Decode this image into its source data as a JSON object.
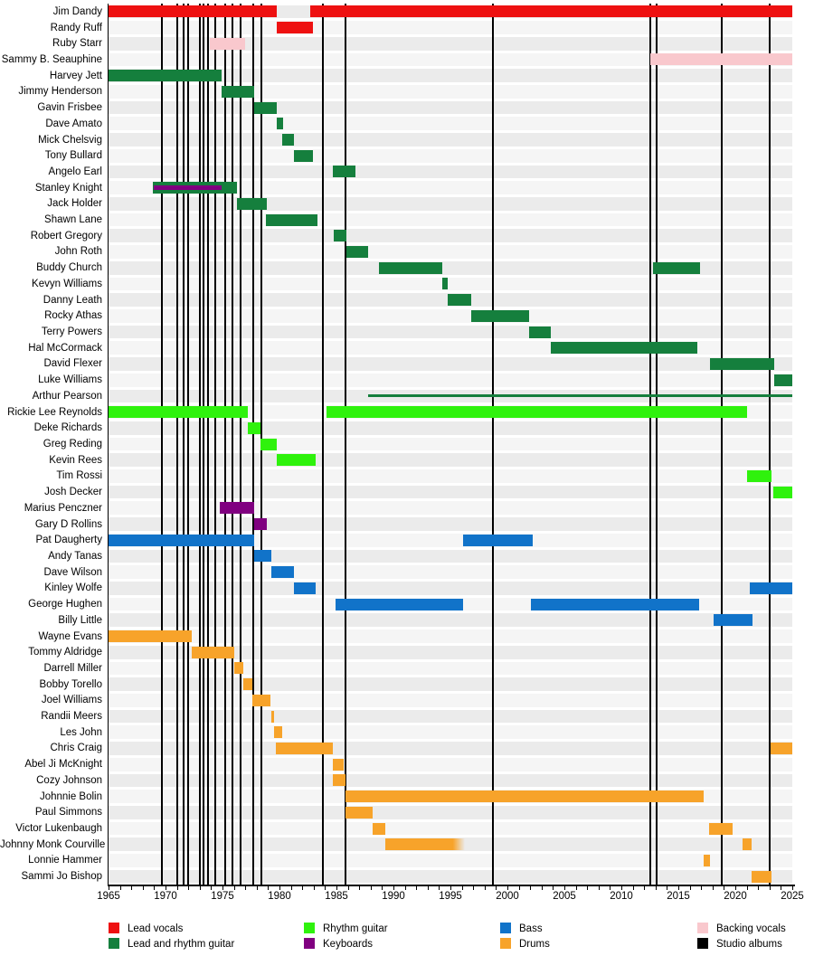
{
  "chart_data": {
    "type": "timeline",
    "description": "Band members timeline with roles and studio album markers",
    "x_axis": {
      "start": 1965,
      "end": 2025,
      "label_interval": 5,
      "tick_labels": [
        "1965",
        "1970",
        "1975",
        "1980",
        "1985",
        "1990",
        "1995",
        "2000",
        "2005",
        "2010",
        "2015",
        "2020",
        "2025"
      ]
    },
    "legend": [
      {
        "label": "Lead vocals",
        "role": "lead_vocals",
        "color": "#ee1111"
      },
      {
        "label": "Lead and rhythm guitar",
        "role": "lead_rhythm_guitar",
        "color": "#157f3d"
      },
      {
        "label": "Rhythm guitar",
        "role": "rhythm_guitar",
        "color": "#2ff20d"
      },
      {
        "label": "Keyboards",
        "role": "keyboards",
        "color": "#800080"
      },
      {
        "label": "Bass",
        "role": "bass",
        "color": "#1173c9"
      },
      {
        "label": "Drums",
        "role": "drums",
        "color": "#f7a32a"
      },
      {
        "label": "Backing vocals",
        "role": "backing_vocals",
        "color": "#f9c8cd"
      },
      {
        "label": "Studio albums",
        "role": "studio_albums",
        "color": "#000000"
      }
    ],
    "album_marker_years": [
      1969.7,
      1971.0,
      1971.6,
      1972.0,
      1973.0,
      1973.3,
      1973.7,
      1974.4,
      1975.2,
      1975.9,
      1976.6,
      1977.7,
      1978.4,
      1983.8,
      1985.8,
      1998.7,
      2012.5,
      2013.1,
      2018.8,
      2023.0
    ],
    "members": [
      {
        "name": "Jim Dandy",
        "bars": [
          {
            "role": "lead_vocals",
            "start": 1965,
            "end": 1979.8
          },
          {
            "role": "lead_vocals",
            "start": 1982.7,
            "end": "present"
          }
        ]
      },
      {
        "name": "Randy Ruff",
        "bars": [
          {
            "role": "lead_vocals",
            "start": 1979.8,
            "end": 1982.9
          }
        ]
      },
      {
        "name": "Ruby Starr",
        "bars": [
          {
            "role": "backing_vocals",
            "start": 1973.9,
            "end": 1977.0
          }
        ]
      },
      {
        "name": "Sammy B. Seauphine",
        "bars": [
          {
            "role": "backing_vocals",
            "start": 2012.5,
            "end": "present"
          }
        ]
      },
      {
        "name": "Harvey Jett",
        "bars": [
          {
            "role": "lead_rhythm_guitar",
            "start": 1965,
            "end": 1974.9
          }
        ]
      },
      {
        "name": "Jimmy Henderson",
        "bars": [
          {
            "role": "lead_rhythm_guitar",
            "start": 1974.9,
            "end": 1977.8
          }
        ]
      },
      {
        "name": "Gavin Frisbee",
        "bars": [
          {
            "role": "lead_rhythm_guitar",
            "start": 1977.8,
            "end": 1979.8
          }
        ]
      },
      {
        "name": "Dave Amato",
        "bars": [
          {
            "role": "lead_rhythm_guitar",
            "start": 1979.8,
            "end": 1980.3
          }
        ]
      },
      {
        "name": "Mick Chelsvig",
        "bars": [
          {
            "role": "lead_rhythm_guitar",
            "start": 1980.2,
            "end": 1981.3
          }
        ]
      },
      {
        "name": "Tony Bullard",
        "bars": [
          {
            "role": "lead_rhythm_guitar",
            "start": 1981.3,
            "end": 1982.9
          }
        ]
      },
      {
        "name": "Angelo Earl",
        "bars": [
          {
            "role": "lead_rhythm_guitar",
            "start": 1984.7,
            "end": 1986.7
          }
        ]
      },
      {
        "name": "Stanley Knight",
        "bars": [
          {
            "role": "lead_rhythm_guitar",
            "start": 1968.9,
            "end": 1976.3
          },
          {
            "role": "keyboards",
            "start": 1969.0,
            "end": 1974.9,
            "overlay": true
          }
        ]
      },
      {
        "name": "Jack Holder",
        "bars": [
          {
            "role": "lead_rhythm_guitar",
            "start": 1976.3,
            "end": 1978.9
          }
        ]
      },
      {
        "name": "Shawn Lane",
        "bars": [
          {
            "role": "lead_rhythm_guitar",
            "start": 1978.8,
            "end": 1983.3
          }
        ]
      },
      {
        "name": "Robert Gregory",
        "bars": [
          {
            "role": "lead_rhythm_guitar",
            "start": 1984.8,
            "end": 1985.9
          }
        ]
      },
      {
        "name": "John Roth",
        "bars": [
          {
            "role": "lead_rhythm_guitar",
            "start": 1985.9,
            "end": 1987.8
          }
        ]
      },
      {
        "name": "Buddy Church",
        "bars": [
          {
            "role": "lead_rhythm_guitar",
            "start": 1988.7,
            "end": 1994.3
          },
          {
            "role": "lead_rhythm_guitar",
            "start": 2012.8,
            "end": 2016.9
          }
        ]
      },
      {
        "name": "Kevyn Williams",
        "bars": [
          {
            "role": "lead_rhythm_guitar",
            "start": 1994.3,
            "end": 1994.8
          }
        ]
      },
      {
        "name": "Danny Leath",
        "bars": [
          {
            "role": "lead_rhythm_guitar",
            "start": 1994.8,
            "end": 1996.8
          }
        ]
      },
      {
        "name": "Rocky Athas",
        "bars": [
          {
            "role": "lead_rhythm_guitar",
            "start": 1996.8,
            "end": 2001.9
          }
        ]
      },
      {
        "name": "Terry Powers",
        "bars": [
          {
            "role": "lead_rhythm_guitar",
            "start": 2001.9,
            "end": 2003.8
          }
        ]
      },
      {
        "name": "Hal McCormack",
        "bars": [
          {
            "role": "lead_rhythm_guitar",
            "start": 2003.8,
            "end": 2016.7
          }
        ]
      },
      {
        "name": "David Flexer",
        "bars": [
          {
            "role": "lead_rhythm_guitar",
            "start": 2017.8,
            "end": 2023.4
          }
        ]
      },
      {
        "name": "Luke Williams",
        "bars": [
          {
            "role": "lead_rhythm_guitar",
            "start": 2023.4,
            "end": "present"
          }
        ]
      },
      {
        "name": "Arthur Pearson",
        "bars": [
          {
            "role": "lead_rhythm_guitar",
            "start": 1987.8,
            "end": "present",
            "thin": true
          }
        ]
      },
      {
        "name": "Rickie Lee Reynolds",
        "bars": [
          {
            "role": "rhythm_guitar",
            "start": 1965,
            "end": 1977.2
          },
          {
            "role": "rhythm_guitar",
            "start": 1984.1,
            "end": 2021.0
          }
        ]
      },
      {
        "name": "Deke Richards",
        "bars": [
          {
            "role": "rhythm_guitar",
            "start": 1977.2,
            "end": 1978.3
          }
        ]
      },
      {
        "name": "Greg Reding",
        "bars": [
          {
            "role": "rhythm_guitar",
            "start": 1978.3,
            "end": 1979.8
          }
        ]
      },
      {
        "name": "Kevin Rees",
        "bars": [
          {
            "role": "rhythm_guitar",
            "start": 1979.8,
            "end": 1983.2
          }
        ]
      },
      {
        "name": "Tim Rossi",
        "bars": [
          {
            "role": "rhythm_guitar",
            "start": 2021.0,
            "end": 2023.2
          }
        ]
      },
      {
        "name": "Josh Decker",
        "bars": [
          {
            "role": "rhythm_guitar",
            "start": 2023.3,
            "end": "present"
          }
        ]
      },
      {
        "name": "Marius Penczner",
        "bars": [
          {
            "role": "keyboards",
            "start": 1974.8,
            "end": 1977.8
          }
        ]
      },
      {
        "name": "Gary D Rollins",
        "bars": [
          {
            "role": "keyboards",
            "start": 1977.8,
            "end": 1978.9
          }
        ]
      },
      {
        "name": "Pat Daugherty",
        "bars": [
          {
            "role": "bass",
            "start": 1965,
            "end": 1977.8
          },
          {
            "role": "bass",
            "start": 1996.1,
            "end": 2002.2
          }
        ]
      },
      {
        "name": "Andy Tanas",
        "bars": [
          {
            "role": "bass",
            "start": 1977.8,
            "end": 1979.3
          }
        ]
      },
      {
        "name": "Dave Wilson",
        "bars": [
          {
            "role": "bass",
            "start": 1979.3,
            "end": 1981.3
          }
        ]
      },
      {
        "name": "Kinley Wolfe",
        "bars": [
          {
            "role": "bass",
            "start": 1981.3,
            "end": 1983.2
          },
          {
            "role": "bass",
            "start": 2021.3,
            "end": "present"
          }
        ]
      },
      {
        "name": "George Hughen",
        "bars": [
          {
            "role": "bass",
            "start": 1984.9,
            "end": 1996.1
          },
          {
            "role": "bass",
            "start": 2002.1,
            "end": 2016.8
          }
        ]
      },
      {
        "name": "Billy Little",
        "bars": [
          {
            "role": "bass",
            "start": 2018.1,
            "end": 2021.5
          }
        ]
      },
      {
        "name": "Wayne Evans",
        "bars": [
          {
            "role": "drums",
            "start": 1965,
            "end": 1972.3
          }
        ]
      },
      {
        "name": "Tommy Aldridge",
        "bars": [
          {
            "role": "drums",
            "start": 1972.3,
            "end": 1976.0
          }
        ]
      },
      {
        "name": "Darrell Miller",
        "bars": [
          {
            "role": "drums",
            "start": 1976.0,
            "end": 1976.8
          }
        ]
      },
      {
        "name": "Bobby Torello",
        "bars": [
          {
            "role": "drums",
            "start": 1976.8,
            "end": 1977.6
          }
        ]
      },
      {
        "name": "Joel Williams",
        "bars": [
          {
            "role": "drums",
            "start": 1977.6,
            "end": 1979.2
          }
        ]
      },
      {
        "name": "Randii Meers",
        "bars": [
          {
            "role": "drums",
            "start": 1979.3,
            "end": 1979.5
          }
        ]
      },
      {
        "name": "Les John",
        "bars": [
          {
            "role": "drums",
            "start": 1979.5,
            "end": 1980.2
          }
        ]
      },
      {
        "name": "Chris Craig",
        "bars": [
          {
            "role": "drums",
            "start": 1979.7,
            "end": 1984.7
          },
          {
            "role": "drums",
            "start": 2023.1,
            "end": "present"
          }
        ]
      },
      {
        "name": "Abel Ji McKnight",
        "bars": [
          {
            "role": "drums",
            "start": 1984.7,
            "end": 1985.6
          }
        ]
      },
      {
        "name": "Cozy Johnson",
        "bars": [
          {
            "role": "drums",
            "start": 1984.7,
            "end": 1985.8
          }
        ]
      },
      {
        "name": "Johnnie Bolin",
        "bars": [
          {
            "role": "drums",
            "start": 1985.8,
            "end": 2017.2
          }
        ]
      },
      {
        "name": "Paul Simmons",
        "bars": [
          {
            "role": "drums",
            "start": 1985.8,
            "end": 1988.2
          }
        ]
      },
      {
        "name": "Victor Lukenbaugh",
        "bars": [
          {
            "role": "drums",
            "start": 1988.2,
            "end": 1989.3
          },
          {
            "role": "drums",
            "start": 2017.7,
            "end": 2019.8
          }
        ]
      },
      {
        "name": "Johnny Monk Courville",
        "bars": [
          {
            "role": "drums",
            "start": 1989.3,
            "end": 1996.3,
            "fade": true
          },
          {
            "role": "drums",
            "start": 2020.6,
            "end": 2021.4
          }
        ]
      },
      {
        "name": "Lonnie Hammer",
        "bars": [
          {
            "role": "drums",
            "start": 2017.2,
            "end": 2017.8
          }
        ]
      },
      {
        "name": "Sammi Jo Bishop",
        "bars": [
          {
            "role": "drums",
            "start": 2021.4,
            "end": 2023.2
          }
        ]
      }
    ],
    "row_stripe_colors": [
      "#ebebeb",
      "#f5f5f5"
    ]
  }
}
